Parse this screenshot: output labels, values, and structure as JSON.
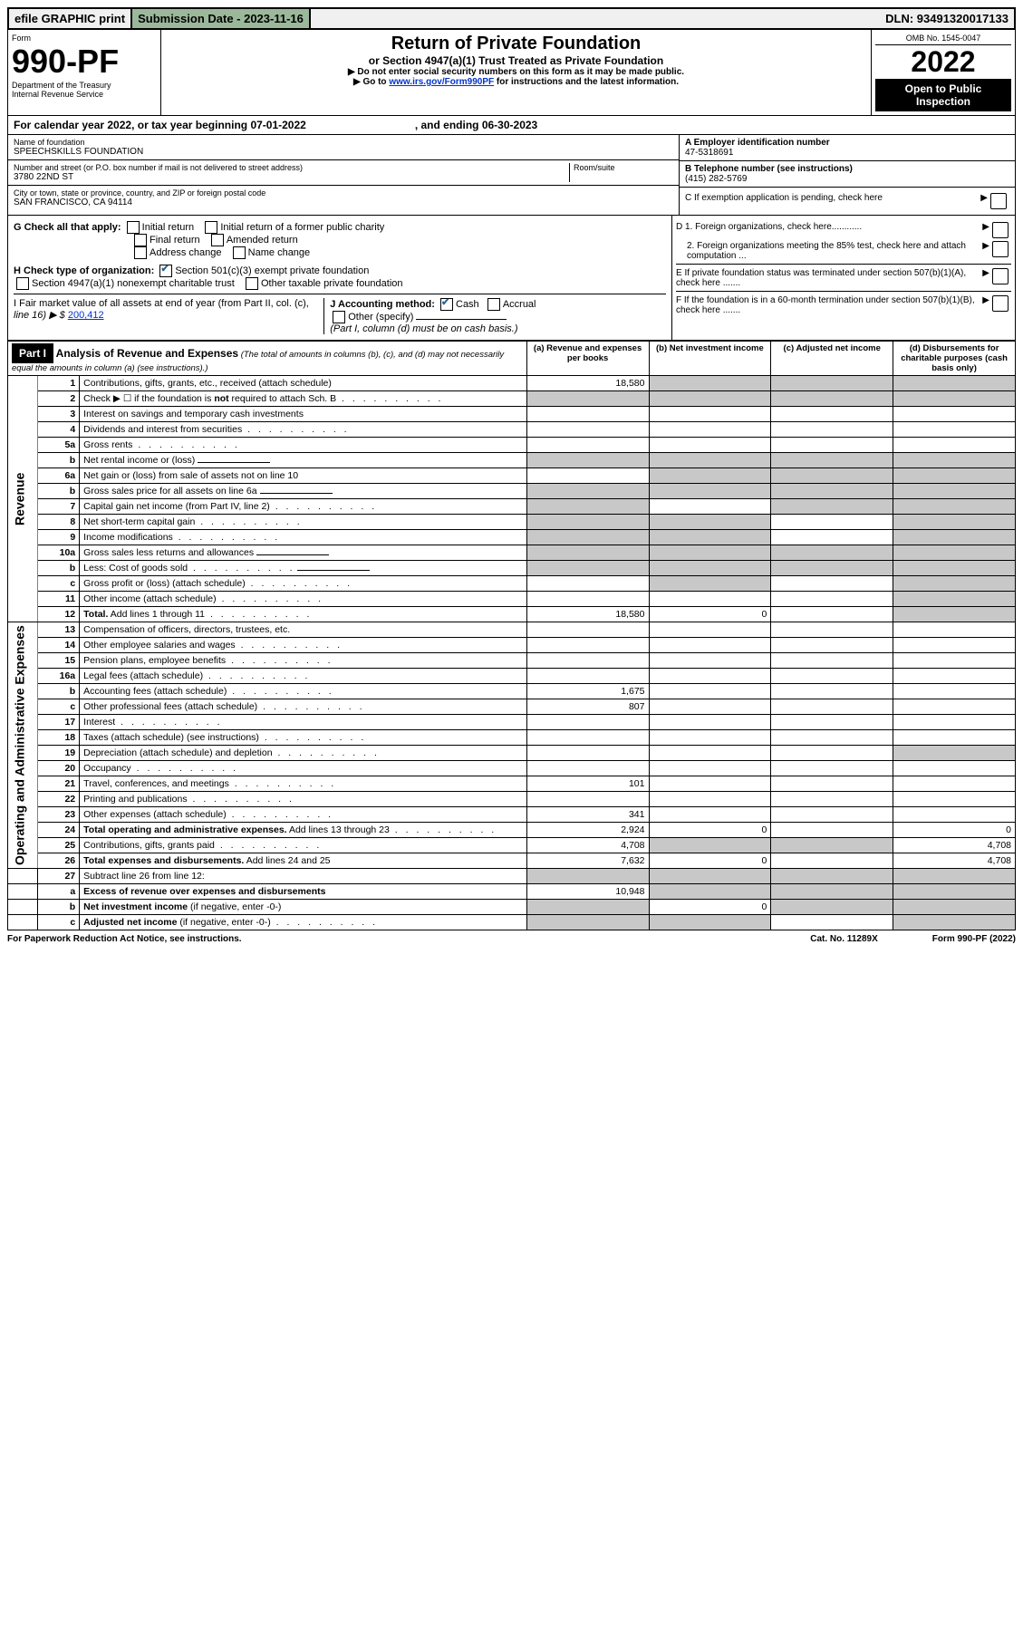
{
  "top": {
    "efile": "efile GRAPHIC print",
    "sub_label": "Submission Date - 2023-11-16",
    "dln": "DLN: 93491320017133"
  },
  "header": {
    "form_word": "Form",
    "form_num": "990-PF",
    "dept": "Department of the Treasury",
    "irs": "Internal Revenue Service",
    "title": "Return of Private Foundation",
    "subtitle": "or Section 4947(a)(1) Trust Treated as Private Foundation",
    "instr1": "▶ Do not enter social security numbers on this form as it may be made public.",
    "instr2_pre": "▶ Go to ",
    "instr2_link": "www.irs.gov/Form990PF",
    "instr2_post": " for instructions and the latest information.",
    "omb": "OMB No. 1545-0047",
    "year": "2022",
    "open": "Open to Public Inspection"
  },
  "cal": {
    "text_a": "For calendar year 2022, or tax year beginning 07-01-2022",
    "text_b": ", and ending 06-30-2023"
  },
  "id": {
    "name_lbl": "Name of foundation",
    "name": "SPEECHSKILLS FOUNDATION",
    "addr_lbl": "Number and street (or P.O. box number if mail is not delivered to street address)",
    "addr": "3780 22ND ST",
    "room_lbl": "Room/suite",
    "city_lbl": "City or town, state or province, country, and ZIP or foreign postal code",
    "city": "SAN FRANCISCO, CA  94114",
    "a_lbl": "A Employer identification number",
    "ein": "47-5318691",
    "b_lbl": "B Telephone number (see instructions)",
    "phone": "(415) 282-5769",
    "c_lbl": "C If exemption application is pending, check here"
  },
  "g": {
    "label": "G Check all that apply:",
    "opts": [
      "Initial return",
      "Initial return of a former public charity",
      "Final return",
      "Amended return",
      "Address change",
      "Name change"
    ]
  },
  "h": {
    "label": "H Check type of organization:",
    "opt1": "Section 501(c)(3) exempt private foundation",
    "opt2": "Section 4947(a)(1) nonexempt charitable trust",
    "opt3": "Other taxable private foundation"
  },
  "i": {
    "label": "I Fair market value of all assets at end of year (from Part II, col. (c),",
    "line": "line 16) ▶ $  ",
    "val": "200,412"
  },
  "j": {
    "label": "J Accounting method:",
    "cash": "Cash",
    "accrual": "Accrual",
    "other": "Other (specify)",
    "note": "(Part I, column (d) must be on cash basis.)"
  },
  "right": {
    "d1": "D 1. Foreign organizations, check here............",
    "d2": "2. Foreign organizations meeting the 85% test, check here and attach computation ...",
    "e": "E  If private foundation status was terminated under section 507(b)(1)(A), check here .......",
    "f": "F  If the foundation is in a 60-month termination under section 507(b)(1)(B), check here .......",
    "arrow": "▶"
  },
  "part1": {
    "hdr": "Part I",
    "title": "Analysis of Revenue and Expenses",
    "note": " (The total of amounts in columns (b), (c), and (d) may not necessarily equal the amounts in column (a) (see instructions).)",
    "cols": {
      "a": "(a) Revenue and expenses per books",
      "b": "(b) Net investment income",
      "c": "(c) Adjusted net income",
      "d": "(d) Disbursements for charitable purposes (cash basis only)"
    }
  },
  "sides": {
    "rev": "Revenue",
    "exp": "Operating and Administrative Expenses"
  },
  "rows": [
    {
      "n": "1",
      "d": "Contributions, gifts, grants, etc., received (attach schedule)",
      "a": "18,580",
      "sb": 1,
      "sc": 1,
      "sd": 1
    },
    {
      "n": "2",
      "d": "Check ▶ ☐ if the foundation is <b>not</b> required to attach Sch. B",
      "sa": 1,
      "sb": 1,
      "sc": 1,
      "sd": 1,
      "dots": 1
    },
    {
      "n": "3",
      "d": "Interest on savings and temporary cash investments"
    },
    {
      "n": "4",
      "d": "Dividends and interest from securities",
      "dots": 1
    },
    {
      "n": "5a",
      "d": "Gross rents",
      "dots": 1
    },
    {
      "n": "b",
      "d": "Net rental income or (loss)",
      "line": 1,
      "sb": 1,
      "sc": 1,
      "sd": 1,
      "sa": 1
    },
    {
      "n": "6a",
      "d": "Net gain or (loss) from sale of assets not on line 10",
      "sb": 1,
      "sc": 1,
      "sd": 1
    },
    {
      "n": "b",
      "d": "Gross sales price for all assets on line 6a",
      "line": 1,
      "sa": 1,
      "sb": 1,
      "sc": 1,
      "sd": 1
    },
    {
      "n": "7",
      "d": "Capital gain net income (from Part IV, line 2)",
      "dots": 1,
      "sa": 1,
      "sc": 1,
      "sd": 1
    },
    {
      "n": "8",
      "d": "Net short-term capital gain",
      "dots": 1,
      "sa": 1,
      "sb": 1,
      "sd": 1
    },
    {
      "n": "9",
      "d": "Income modifications",
      "dots": 1,
      "sa": 1,
      "sb": 1,
      "sd": 1
    },
    {
      "n": "10a",
      "d": "Gross sales less returns and allowances",
      "line": 1,
      "sa": 1,
      "sb": 1,
      "sc": 1,
      "sd": 1
    },
    {
      "n": "b",
      "d": "Less: Cost of goods sold",
      "dots": 1,
      "line": 1,
      "sa": 1,
      "sb": 1,
      "sc": 1,
      "sd": 1
    },
    {
      "n": "c",
      "d": "Gross profit or (loss) (attach schedule)",
      "dots": 1,
      "sb": 1,
      "sd": 1
    },
    {
      "n": "11",
      "d": "Other income (attach schedule)",
      "dots": 1,
      "sd": 1
    },
    {
      "n": "12",
      "d": "<b>Total.</b> Add lines 1 through 11",
      "dots": 1,
      "a": "18,580",
      "b": "0",
      "sd": 1
    }
  ],
  "exp_rows": [
    {
      "n": "13",
      "d": "Compensation of officers, directors, trustees, etc."
    },
    {
      "n": "14",
      "d": "Other employee salaries and wages",
      "dots": 1
    },
    {
      "n": "15",
      "d": "Pension plans, employee benefits",
      "dots": 1
    },
    {
      "n": "16a",
      "d": "Legal fees (attach schedule)",
      "dots": 1
    },
    {
      "n": "b",
      "d": "Accounting fees (attach schedule)",
      "dots": 1,
      "a": "1,675"
    },
    {
      "n": "c",
      "d": "Other professional fees (attach schedule)",
      "dots": 1,
      "a": "807"
    },
    {
      "n": "17",
      "d": "Interest",
      "dots": 1
    },
    {
      "n": "18",
      "d": "Taxes (attach schedule) (see instructions)",
      "dots": 1
    },
    {
      "n": "19",
      "d": "Depreciation (attach schedule) and depletion",
      "dots": 1,
      "sd": 1
    },
    {
      "n": "20",
      "d": "Occupancy",
      "dots": 1
    },
    {
      "n": "21",
      "d": "Travel, conferences, and meetings",
      "dots": 1,
      "a": "101"
    },
    {
      "n": "22",
      "d": "Printing and publications",
      "dots": 1
    },
    {
      "n": "23",
      "d": "Other expenses (attach schedule)",
      "dots": 1,
      "a": "341"
    },
    {
      "n": "24",
      "d": "<b>Total operating and administrative expenses.</b> Add lines 13 through 23",
      "dots": 1,
      "a": "2,924",
      "b": "0",
      "dv": "0"
    },
    {
      "n": "25",
      "d": "Contributions, gifts, grants paid",
      "dots": 1,
      "a": "4,708",
      "sb": 1,
      "sc": 1,
      "dv": "4,708"
    },
    {
      "n": "26",
      "d": "<b>Total expenses and disbursements.</b> Add lines 24 and 25",
      "a": "7,632",
      "b": "0",
      "dv": "4,708"
    }
  ],
  "final_rows": [
    {
      "n": "27",
      "d": "Subtract line 26 from line 12:",
      "sa": 1,
      "sb": 1,
      "sc": 1,
      "sd": 1
    },
    {
      "n": "a",
      "d": "<b>Excess of revenue over expenses and disbursements</b>",
      "a": "10,948",
      "sb": 1,
      "sc": 1,
      "sd": 1
    },
    {
      "n": "b",
      "d": "<b>Net investment income</b> (if negative, enter -0-)",
      "sa": 1,
      "b": "0",
      "sc": 1,
      "sd": 1
    },
    {
      "n": "c",
      "d": "<b>Adjusted net income</b> (if negative, enter -0-)",
      "dots": 1,
      "sa": 1,
      "sb": 1,
      "sd": 1
    }
  ],
  "footer": {
    "pra": "For Paperwork Reduction Act Notice, see instructions.",
    "cat": "Cat. No. 11289X",
    "form": "Form 990-PF (2022)"
  }
}
